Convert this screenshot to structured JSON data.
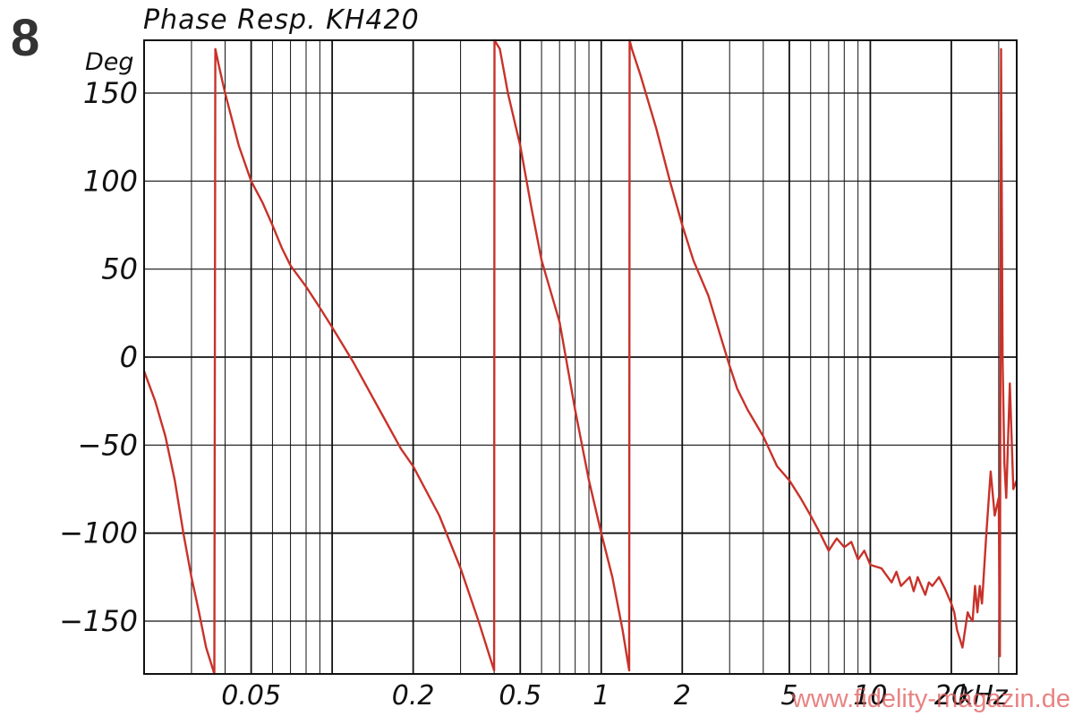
{
  "figure_number": "8",
  "watermark": "www.fidelity-magazin.de",
  "colors": {
    "curve": "#c8322a",
    "grid": "#111111",
    "text": "#111111"
  },
  "chart_data": {
    "type": "line",
    "title": "Phase Resp. KH420",
    "ylabel": "Deg",
    "xunit": "kHz",
    "xscale": "log",
    "xlim": [
      0.02,
      35
    ],
    "ylim": [
      -180,
      180
    ],
    "grid": true,
    "legend": "none",
    "x_ticks": [
      {
        "value": 0.05,
        "label": "0.05"
      },
      {
        "value": 0.2,
        "label": "0.2"
      },
      {
        "value": 0.5,
        "label": "0.5"
      },
      {
        "value": 1,
        "label": "1"
      },
      {
        "value": 2,
        "label": "2"
      },
      {
        "value": 5,
        "label": "5"
      },
      {
        "value": 10,
        "label": "10"
      },
      {
        "value": 20,
        "label": "20"
      }
    ],
    "y_ticks": [
      {
        "value": 150,
        "label": "150"
      },
      {
        "value": 100,
        "label": "100"
      },
      {
        "value": 50,
        "label": "50"
      },
      {
        "value": 0,
        "label": "0"
      },
      {
        "value": -50,
        "label": "−50"
      },
      {
        "value": -100,
        "label": "−100"
      },
      {
        "value": -150,
        "label": "−150"
      }
    ],
    "series": [
      {
        "x": [
          0.02,
          0.022,
          0.024,
          0.026,
          0.028,
          0.03,
          0.032,
          0.034,
          0.036,
          0.0365,
          0.0368,
          0.038,
          0.04,
          0.045,
          0.05,
          0.055,
          0.06,
          0.065,
          0.07,
          0.08,
          0.09,
          0.1,
          0.12,
          0.15,
          0.18,
          0.2,
          0.25,
          0.3,
          0.35,
          0.4,
          0.401,
          0.42,
          0.45,
          0.5,
          0.55,
          0.6,
          0.7,
          0.8,
          0.9,
          1.0,
          1.1,
          1.2,
          1.27,
          1.275,
          1.3,
          1.4,
          1.6,
          1.8,
          2.0,
          2.2,
          2.5,
          2.8,
          3.0,
          3.2,
          3.5,
          4.0,
          4.5,
          5.0,
          5.5,
          6.0,
          6.5,
          7.0,
          7.5,
          8.0,
          8.5,
          9.0,
          9.5,
          10.0,
          11.0,
          12.0,
          12.5,
          13.0,
          14.0,
          14.5,
          15.0,
          16.0,
          16.5,
          17.0,
          18.0,
          19.0,
          20.0,
          20.5,
          21.0,
          21.5,
          22.0,
          22.5,
          23.0,
          23.5,
          24.0,
          24.5,
          25.0,
          25.5,
          26.0,
          27.0,
          28.0,
          29.0,
          30.0,
          30.3,
          30.6,
          31.0,
          31.5,
          32.0,
          33.0,
          34.0,
          35.0
        ],
        "y": [
          -8,
          -25,
          -45,
          -70,
          -100,
          -125,
          -145,
          -165,
          -177,
          -180,
          175,
          165,
          150,
          120,
          100,
          88,
          75,
          62,
          52,
          40,
          28,
          17,
          -3,
          -30,
          -52,
          -62,
          -90,
          -120,
          -150,
          -178,
          180,
          175,
          150,
          120,
          85,
          55,
          20,
          -30,
          -70,
          -100,
          -125,
          -155,
          -178,
          180,
          175,
          160,
          130,
          100,
          75,
          55,
          35,
          10,
          -5,
          -18,
          -30,
          -45,
          -62,
          -70,
          -80,
          -90,
          -100,
          -110,
          -103,
          -108,
          -105,
          -115,
          -110,
          -118,
          -120,
          -128,
          -122,
          -130,
          -125,
          -133,
          -125,
          -135,
          -128,
          -130,
          -125,
          -132,
          -140,
          -145,
          -155,
          -160,
          -165,
          -155,
          -145,
          -148,
          -150,
          -130,
          -145,
          -130,
          -140,
          -100,
          -65,
          -90,
          -80,
          -170,
          175,
          0,
          -60,
          -80,
          -15,
          -75,
          -70
        ]
      }
    ]
  }
}
